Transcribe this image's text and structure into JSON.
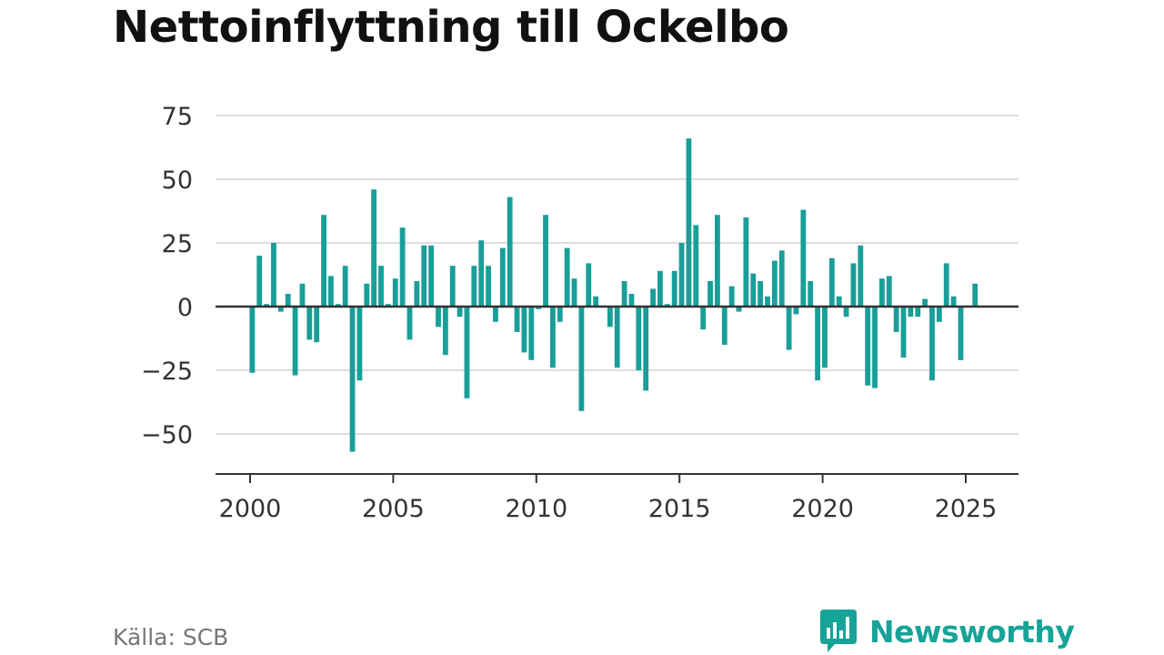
{
  "title": "Nettoinflyttning till Ockelbo",
  "source": "Källa: SCB",
  "brand": "Newsworthy",
  "colors": {
    "bar": "#1a9e99",
    "grid": "#dddddd",
    "zero": "#333333",
    "brand": "#16a398"
  },
  "chart_data": {
    "type": "bar",
    "title": "Nettoinflyttning till Ockelbo",
    "xlabel": "",
    "ylabel": "",
    "grid": true,
    "legend": "none",
    "xlim": [
      "2000-01",
      "2025-12"
    ],
    "ylim": [
      -60,
      80
    ],
    "xticks": [
      2000,
      2005,
      2010,
      2015,
      2020,
      2025
    ],
    "yticks": [
      -50,
      -25,
      0,
      25,
      50,
      75
    ],
    "ytick_labels": [
      "−50",
      "−25",
      "0",
      "25",
      "50",
      "75"
    ],
    "x": [
      "2000-Q1",
      "2000-Q2",
      "2000-Q3",
      "2000-Q4",
      "2001-Q1",
      "2001-Q2",
      "2001-Q3",
      "2001-Q4",
      "2002-Q1",
      "2002-Q2",
      "2002-Q3",
      "2002-Q4",
      "2003-Q1",
      "2003-Q2",
      "2003-Q3",
      "2003-Q4",
      "2004-Q1",
      "2004-Q2",
      "2004-Q3",
      "2004-Q4",
      "2005-Q1",
      "2005-Q2",
      "2005-Q3",
      "2005-Q4",
      "2006-Q1",
      "2006-Q2",
      "2006-Q3",
      "2006-Q4",
      "2007-Q1",
      "2007-Q2",
      "2007-Q3",
      "2007-Q4",
      "2008-Q1",
      "2008-Q2",
      "2008-Q3",
      "2008-Q4",
      "2009-Q1",
      "2009-Q2",
      "2009-Q3",
      "2009-Q4",
      "2010-Q1",
      "2010-Q2",
      "2010-Q3",
      "2010-Q4",
      "2011-Q1",
      "2011-Q2",
      "2011-Q3",
      "2011-Q4",
      "2012-Q1",
      "2012-Q2",
      "2012-Q3",
      "2012-Q4",
      "2013-Q1",
      "2013-Q2",
      "2013-Q3",
      "2013-Q4",
      "2014-Q1",
      "2014-Q2",
      "2014-Q3",
      "2014-Q4",
      "2015-Q1",
      "2015-Q2",
      "2015-Q3",
      "2015-Q4",
      "2016-Q1",
      "2016-Q2",
      "2016-Q3",
      "2016-Q4",
      "2017-Q1",
      "2017-Q2",
      "2017-Q3",
      "2017-Q4",
      "2018-Q1",
      "2018-Q2",
      "2018-Q3",
      "2018-Q4",
      "2019-Q1",
      "2019-Q2",
      "2019-Q3",
      "2019-Q4",
      "2020-Q1",
      "2020-Q2",
      "2020-Q3",
      "2020-Q4",
      "2021-Q1",
      "2021-Q2",
      "2021-Q3",
      "2021-Q4",
      "2022-Q1",
      "2022-Q2",
      "2022-Q3",
      "2022-Q4",
      "2023-Q1",
      "2023-Q2",
      "2023-Q3",
      "2023-Q4",
      "2024-Q1",
      "2024-Q2",
      "2024-Q3",
      "2024-Q4",
      "2025-Q1",
      "2025-Q2"
    ],
    "values": [
      -26,
      20,
      1,
      25,
      -2,
      5,
      -27,
      9,
      -13,
      -14,
      36,
      12,
      1,
      16,
      -57,
      -29,
      9,
      46,
      16,
      1,
      11,
      31,
      -13,
      10,
      24,
      24,
      -8,
      -19,
      16,
      -4,
      -36,
      16,
      26,
      16,
      -6,
      23,
      43,
      -10,
      -18,
      -21,
      -1,
      36,
      -24,
      -6,
      23,
      11,
      -41,
      17,
      4,
      0,
      -8,
      -24,
      10,
      5,
      -25,
      -33,
      7,
      14,
      1,
      14,
      25,
      66,
      32,
      -9,
      10,
      36,
      -15,
      8,
      -2,
      35,
      13,
      10,
      4,
      18,
      22,
      -17,
      -3,
      38,
      10,
      -29,
      -24,
      19,
      4,
      -4,
      17,
      24,
      -31,
      -32,
      11,
      12,
      -10,
      -20,
      -4,
      -4,
      3,
      -29,
      -6,
      17,
      4,
      -21,
      0,
      9
    ]
  }
}
